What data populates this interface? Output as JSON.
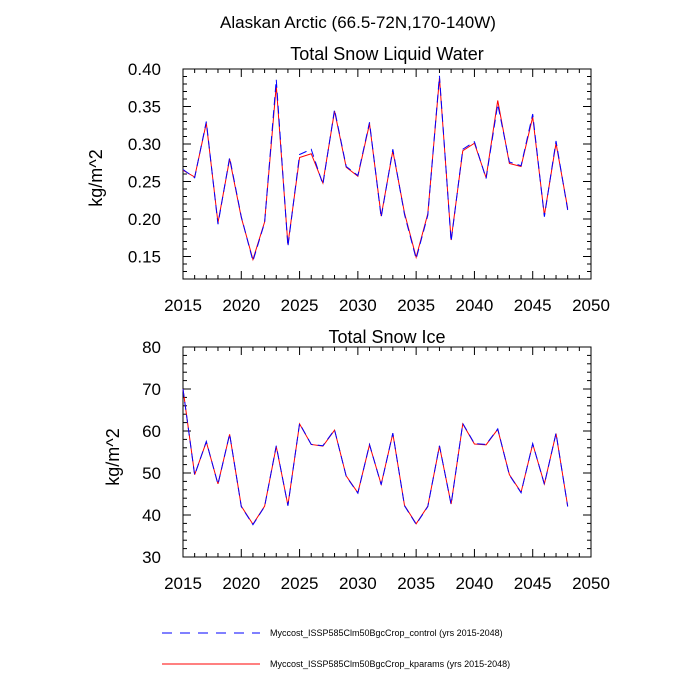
{
  "page": {
    "title": "Alaskan Arctic (66.5-72N,170-140W)"
  },
  "colors": {
    "control": "#0000ff",
    "kparams": "#ff0000",
    "axes": "#000000"
  },
  "chart_data": [
    {
      "type": "line",
      "title": "Total Snow Liquid Water",
      "xlabel": "",
      "ylabel": "kg/m^2",
      "xlim": [
        2015,
        2050
      ],
      "ylim": [
        0.12,
        0.4
      ],
      "xticks": [
        2015,
        2020,
        2025,
        2030,
        2035,
        2040,
        2045,
        2050
      ],
      "xtick_labels": [
        "2015",
        "2020",
        "2025",
        "2030",
        "2035",
        "2040",
        "2045",
        "2050"
      ],
      "yticks": [
        0.15,
        0.2,
        0.25,
        0.3,
        0.35,
        0.4
      ],
      "ytick_labels": [
        "0.15",
        "0.20",
        "0.25",
        "0.30",
        "0.35",
        "0.40"
      ],
      "grid": false,
      "x": [
        2015,
        2016,
        2017,
        2018,
        2019,
        2020,
        2021,
        2022,
        2023,
        2024,
        2025,
        2026,
        2027,
        2028,
        2029,
        2030,
        2031,
        2032,
        2033,
        2034,
        2035,
        2036,
        2037,
        2038,
        2039,
        2040,
        2041,
        2042,
        2043,
        2044,
        2045,
        2046,
        2047,
        2048
      ],
      "series": [
        {
          "name": "Myccost_ISSP585Clm50BgcCrop_control (yrs 2015-2048)",
          "style": "dashed",
          "color": "#0000ff",
          "values": [
            0.266,
            0.255,
            0.33,
            0.193,
            0.282,
            0.203,
            0.144,
            0.195,
            0.386,
            0.163,
            0.286,
            0.293,
            0.246,
            0.346,
            0.27,
            0.258,
            0.329,
            0.202,
            0.293,
            0.206,
            0.147,
            0.205,
            0.391,
            0.17,
            0.293,
            0.303,
            0.254,
            0.353,
            0.276,
            0.271,
            0.34,
            0.203,
            0.304,
            0.212
          ]
        },
        {
          "name": "Myccost_ISSP585Clm50BgcCrop_kparams (yrs 2015-2048)",
          "style": "solid",
          "color": "#ff0000",
          "values": [
            0.265,
            0.256,
            0.328,
            0.195,
            0.28,
            0.202,
            0.146,
            0.196,
            0.378,
            0.166,
            0.282,
            0.287,
            0.248,
            0.344,
            0.269,
            0.257,
            0.327,
            0.204,
            0.291,
            0.208,
            0.149,
            0.207,
            0.388,
            0.172,
            0.291,
            0.301,
            0.255,
            0.358,
            0.274,
            0.27,
            0.336,
            0.205,
            0.301,
            0.214
          ]
        }
      ]
    },
    {
      "type": "line",
      "title": "Total Snow Ice",
      "xlabel": "",
      "ylabel": "kg/m^2",
      "xlim": [
        2015,
        2050
      ],
      "ylim": [
        30,
        80
      ],
      "xticks": [
        2015,
        2020,
        2025,
        2030,
        2035,
        2040,
        2045,
        2050
      ],
      "xtick_labels": [
        "2015",
        "2020",
        "2025",
        "2030",
        "2035",
        "2040",
        "2045",
        "2050"
      ],
      "yticks": [
        30,
        40,
        50,
        60,
        70,
        80
      ],
      "ytick_labels": [
        "30",
        "40",
        "50",
        "60",
        "70",
        "80"
      ],
      "grid": false,
      "x": [
        2015,
        2016,
        2017,
        2018,
        2019,
        2020,
        2021,
        2022,
        2023,
        2024,
        2025,
        2026,
        2027,
        2028,
        2029,
        2030,
        2031,
        2032,
        2033,
        2034,
        2035,
        2036,
        2037,
        2038,
        2039,
        2040,
        2041,
        2042,
        2043,
        2044,
        2045,
        2046,
        2047,
        2048
      ],
      "series": [
        {
          "name": "Myccost_ISSP585Clm50BgcCrop_control (yrs 2015-2048)",
          "style": "dashed",
          "color": "#0000ff",
          "values": [
            70.0,
            49.5,
            57.5,
            47.3,
            59.3,
            42.0,
            37.7,
            42.0,
            56.5,
            42.2,
            61.8,
            56.8,
            56.5,
            60.3,
            49.2,
            45.2,
            56.8,
            47.2,
            59.5,
            42.2,
            37.8,
            42.0,
            56.5,
            42.5,
            61.8,
            57.0,
            56.8,
            60.5,
            49.5,
            45.3,
            57.0,
            47.3,
            59.5,
            42.0
          ]
        },
        {
          "name": "Myccost_ISSP585Clm50BgcCrop_kparams (yrs 2015-2048)",
          "style": "solid",
          "color": "#ff0000",
          "values": [
            70.0,
            49.6,
            57.4,
            47.4,
            59.2,
            42.1,
            37.8,
            42.1,
            56.3,
            42.3,
            61.7,
            56.8,
            56.4,
            60.2,
            49.3,
            45.3,
            56.7,
            47.3,
            59.4,
            42.3,
            37.9,
            42.1,
            56.4,
            42.6,
            61.7,
            56.9,
            56.7,
            60.4,
            49.6,
            45.4,
            56.9,
            47.4,
            59.4,
            42.1
          ]
        }
      ]
    }
  ],
  "legend": [
    {
      "label": "Myccost_ISSP585Clm50BgcCrop_control (yrs 2015-2048)",
      "style": "dashed",
      "color": "#0000ff"
    },
    {
      "label": "Myccost_ISSP585Clm50BgcCrop_kparams (yrs 2015-2048)",
      "style": "solid",
      "color": "#ff0000"
    }
  ]
}
